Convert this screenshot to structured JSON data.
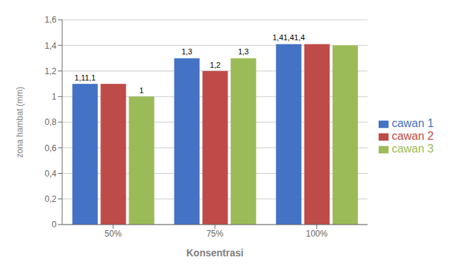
{
  "chart_data": {
    "type": "bar",
    "xlabel": "Konsentrasi",
    "ylabel": "zona hambat (mm)",
    "categories": [
      "50%",
      "75%",
      "100%"
    ],
    "series": [
      {
        "name": "cawan 1",
        "color": "#4472C4",
        "values": [
          1.1,
          1.3,
          1.41
        ]
      },
      {
        "name": "cawan 2",
        "color": "#BE4B48",
        "values": [
          1.1,
          1.2,
          1.41
        ]
      },
      {
        "name": "cawan 3",
        "color": "#9BBB59",
        "values": [
          1.0,
          1.3,
          1.4
        ]
      }
    ],
    "ylim": [
      0,
      1.6
    ],
    "yticks": [
      0,
      {
        "value": 0.2,
        "label": "0,2"
      },
      {
        "value": 0.4,
        "label": "0,4"
      },
      {
        "value": 0.6,
        "label": "0,6"
      },
      {
        "value": 0.8,
        "label": "0,8"
      },
      1,
      {
        "value": 1.2,
        "label": "1,2"
      },
      {
        "value": 1.4,
        "label": "1,4"
      },
      {
        "value": 1.6,
        "label": "1,6"
      }
    ],
    "grid": true,
    "legend": "right",
    "annotations": [
      {
        "category": "50%",
        "series": "cawan 1",
        "text": "1,11,1"
      },
      {
        "category": "50%",
        "series": "cawan 3",
        "text": "1"
      },
      {
        "category": "75%",
        "series": "cawan 1",
        "text": "1,3"
      },
      {
        "category": "75%",
        "series": "cawan 2",
        "text": "1,2"
      },
      {
        "category": "75%",
        "series": "cawan 3",
        "text": "1,3"
      },
      {
        "category": "100%",
        "series": "cawan 1",
        "text": "1,41,41,4"
      }
    ]
  }
}
